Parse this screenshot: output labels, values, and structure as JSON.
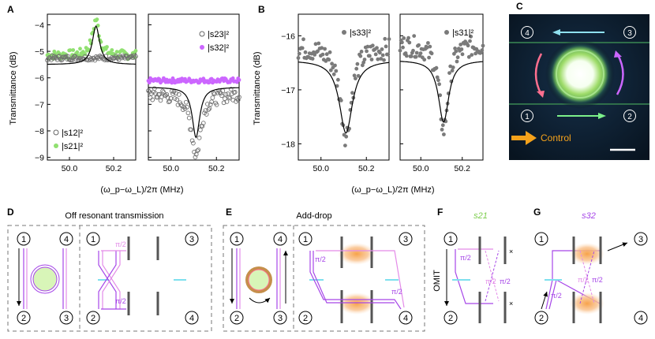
{
  "figure": {
    "panels": [
      "A",
      "B",
      "C",
      "D",
      "E",
      "F",
      "G"
    ]
  },
  "panelA": {
    "ylabel": "Transmittance (dB)",
    "xlabel": "(ω_p−ω_L)/2π (MHz)",
    "left_legend": [
      "|s12|²",
      "|s21|²"
    ],
    "right_legend": [
      "|s23|²",
      "|s32|²"
    ]
  },
  "panelB": {
    "ylabel": "Transmittance (dB)",
    "xlabel": "(ω_p−ω_L)/2π (MHz)",
    "left_legend": "|s33|²",
    "right_legend": "|s31|²"
  },
  "panelC": {
    "ports": [
      "4",
      "3",
      "1",
      "2"
    ],
    "control_label": "Control",
    "colors": {
      "cyan": "#8fe0ef",
      "green": "#7cf08a",
      "pink": "#ff6f8f",
      "purple": "#cc66ff",
      "orange": "#f5a21b"
    }
  },
  "panelD": {
    "title": "Off resonant transmission",
    "ports": [
      "1",
      "4",
      "2",
      "3",
      "1",
      "3",
      "2",
      "4"
    ],
    "phase": "π/2"
  },
  "panelE": {
    "title": "Add-drop",
    "ports": [
      "1",
      "4",
      "2",
      "3",
      "1",
      "3",
      "2",
      "4"
    ],
    "phase": "π/2"
  },
  "panelF": {
    "title": "s21",
    "ports": [
      "1",
      "2"
    ],
    "omit_label": "OMIT",
    "phase": "π/2"
  },
  "panelG": {
    "title": "s32",
    "ports": [
      "1",
      "3",
      "2",
      "4"
    ],
    "phase": "π/2"
  },
  "chart_data": [
    {
      "type": "scatter",
      "id": "A-left",
      "title": "",
      "xlabel": "(ω_p−ω_L)/2π (MHz)",
      "ylabel": "Transmittance (dB)",
      "xlim": [
        49.9,
        50.3
      ],
      "ylim": [
        -9.1,
        -3.6
      ],
      "xticks": [
        50.0,
        50.2
      ],
      "yticks": [
        -4,
        -5,
        -6,
        -7,
        -8,
        -9
      ],
      "series": [
        {
          "name": "|s21|²",
          "color": "#90e070",
          "style": "filled",
          "peak": {
            "x0": 50.12,
            "w": 0.018,
            "base": -5.15,
            "amp": 1.35
          }
        },
        {
          "name": "|s12|²",
          "color": "#707070",
          "style": "open",
          "flat": -5.25
        },
        {
          "name": "fit",
          "color": "#000000",
          "style": "line",
          "peak": {
            "x0": 50.12,
            "w": 0.02,
            "base": -5.5,
            "amp": 1.45
          }
        }
      ]
    },
    {
      "type": "scatter",
      "id": "A-right",
      "xlim": [
        49.9,
        50.3
      ],
      "ylim": [
        -9.1,
        -3.6
      ],
      "xticks": [
        50.0,
        50.2
      ],
      "series": [
        {
          "name": "|s32|²",
          "color": "#cc66ff",
          "style": "filled",
          "flat": -6.1
        },
        {
          "name": "|s23|²",
          "color": "#707070",
          "style": "open",
          "peak": {
            "x0": 50.11,
            "w": 0.025,
            "base": -6.6,
            "amp": -2.3
          }
        },
        {
          "name": "fit",
          "color": "#000000",
          "style": "line",
          "peak": {
            "x0": 50.11,
            "w": 0.02,
            "base": -6.35,
            "amp": -1.9
          }
        }
      ]
    },
    {
      "type": "scatter",
      "id": "B-left",
      "xlabel": "(ω_p−ω_L)/2π (MHz)",
      "ylabel": "Transmittance (dB)",
      "xlim": [
        49.9,
        50.3
      ],
      "ylim": [
        -18.3,
        -15.6
      ],
      "xticks": [
        50.0,
        50.2
      ],
      "yticks": [
        -16,
        -17,
        -18
      ],
      "series": [
        {
          "name": "|s33|²",
          "color": "#7a7a7a",
          "style": "filled",
          "peak": {
            "x0": 50.11,
            "w": 0.03,
            "base": -16.2,
            "amp": -1.65
          }
        },
        {
          "name": "fit",
          "color": "#000000",
          "style": "line",
          "peak": {
            "x0": 50.11,
            "w": 0.035,
            "base": -16.45,
            "amp": -1.35
          }
        }
      ]
    },
    {
      "type": "scatter",
      "id": "B-right",
      "xlim": [
        49.9,
        50.3
      ],
      "ylim": [
        -18.3,
        -15.6
      ],
      "xticks": [
        50.0,
        50.2
      ],
      "series": [
        {
          "name": "|s31|²",
          "color": "#7a7a7a",
          "style": "filled",
          "peak": {
            "x0": 50.11,
            "w": 0.025,
            "base": -16.15,
            "amp": -1.6
          }
        },
        {
          "name": "fit",
          "color": "#000000",
          "style": "line",
          "peak": {
            "x0": 50.11,
            "w": 0.03,
            "base": -16.45,
            "amp": -1.15
          }
        }
      ]
    }
  ]
}
